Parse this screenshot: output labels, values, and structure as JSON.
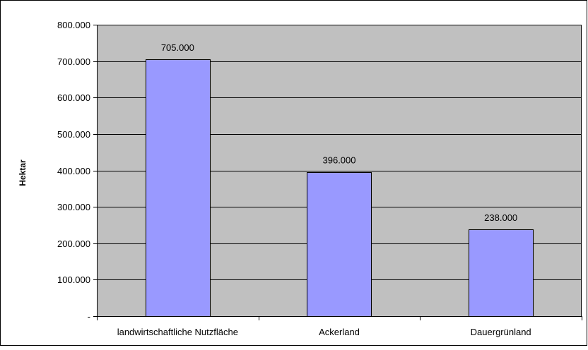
{
  "chart_data": {
    "type": "bar",
    "categories": [
      "landwirtschaftliche Nutzfläche",
      "Ackerland",
      "Dauergrünland"
    ],
    "values": [
      705000,
      396000,
      238000
    ],
    "data_labels": [
      "705.000",
      "396.000",
      "238.000"
    ],
    "ylabel": "Hektar",
    "xlabel": "",
    "title": "",
    "ylim": [
      0,
      800000
    ],
    "yticks": [
      0,
      100000,
      200000,
      300000,
      400000,
      500000,
      600000,
      700000,
      800000
    ],
    "ytick_labels": [
      "-",
      "100.000",
      "200.000",
      "300.000",
      "400.000",
      "500.000",
      "600.000",
      "700.000",
      "800.000"
    ],
    "grid": true,
    "legend": "none",
    "colors": {
      "plot_background": "#c0c0c0",
      "bar_fill": "#9999ff",
      "bar_stroke": "#000000",
      "gridline": "#000000",
      "frame": "#000000"
    }
  }
}
